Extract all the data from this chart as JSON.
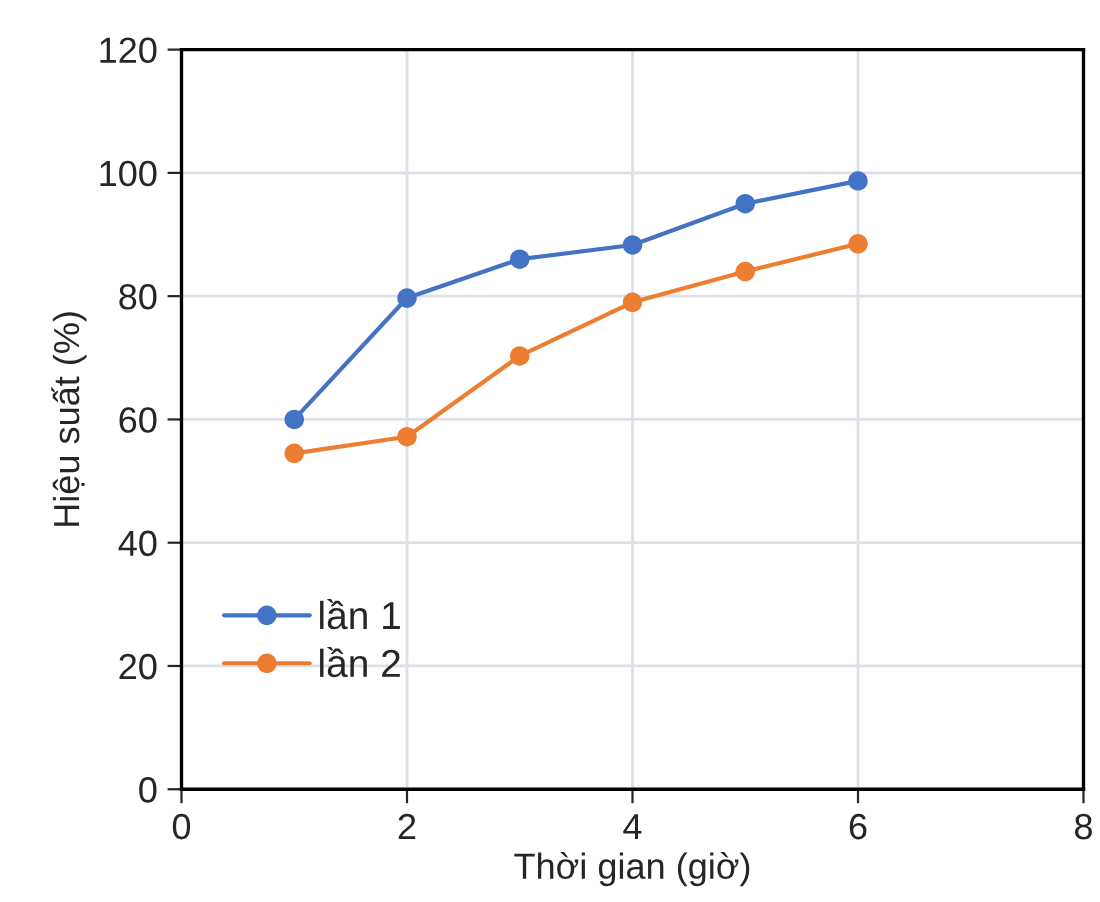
{
  "chart_data": {
    "type": "line",
    "xlabel": "Thời gian (giờ)",
    "ylabel": "Hiệu suất (%)",
    "x": [
      1,
      2,
      3,
      4,
      5,
      6
    ],
    "series": [
      {
        "name": "lần 1",
        "color": "#4472c4",
        "values": [
          60,
          79.7,
          86,
          88.3,
          95,
          98.7
        ]
      },
      {
        "name": "lần 2",
        "color": "#ed7d31",
        "values": [
          54.5,
          57.2,
          70.3,
          79,
          84,
          88.5
        ]
      }
    ],
    "xlim": [
      0,
      8
    ],
    "xticks": [
      0,
      2,
      4,
      6,
      8
    ],
    "ylim": [
      0,
      120
    ],
    "yticks": [
      0,
      20,
      40,
      60,
      80,
      100,
      120
    ],
    "grid": true,
    "legend": "bottom left",
    "marker": "circle",
    "line_style": "solid"
  }
}
